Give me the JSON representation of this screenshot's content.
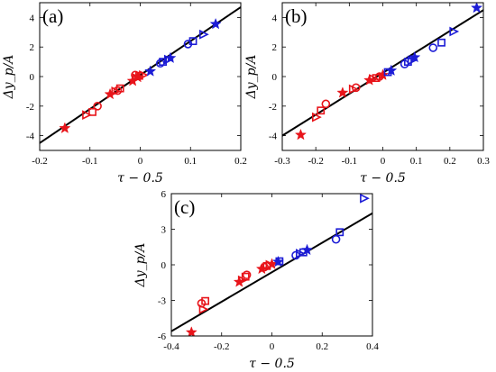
{
  "colors": {
    "red": "#e8141a",
    "blue": "#1c1cd6",
    "fit_line": "#000000"
  },
  "chart_data": [
    {
      "type": "scatter",
      "panel_label": "(a)",
      "xlabel": "τ − 0.5",
      "ylabel": "Δy_p/A",
      "xlim": [
        -0.2,
        0.2
      ],
      "ylim": [
        -5,
        5
      ],
      "xticks": [
        -0.2,
        -0.1,
        0,
        0.1,
        0.2
      ],
      "yticks": [
        -4,
        -2,
        0,
        2,
        4
      ],
      "xtick_labels": [
        "-0.2",
        "-0.1",
        "0",
        "0.1",
        "0.2"
      ],
      "ytick_labels": [
        "-4",
        "-2",
        "0",
        "2",
        "4"
      ],
      "grid": false,
      "fit_line": {
        "x": [
          -0.2,
          0.2
        ],
        "y": [
          -4.5,
          4.7
        ]
      },
      "points": [
        {
          "x": -0.15,
          "y": -3.5,
          "marker": "star",
          "color": "red"
        },
        {
          "x": -0.108,
          "y": -2.6,
          "marker": "triangle",
          "color": "red"
        },
        {
          "x": -0.095,
          "y": -2.4,
          "marker": "square",
          "color": "red"
        },
        {
          "x": -0.085,
          "y": -2.0,
          "marker": "circle",
          "color": "red"
        },
        {
          "x": -0.06,
          "y": -1.2,
          "marker": "star",
          "color": "red"
        },
        {
          "x": -0.05,
          "y": -1.0,
          "marker": "triangle",
          "color": "red"
        },
        {
          "x": -0.045,
          "y": -0.95,
          "marker": "circle",
          "color": "red"
        },
        {
          "x": -0.04,
          "y": -0.8,
          "marker": "square",
          "color": "red"
        },
        {
          "x": -0.015,
          "y": -0.3,
          "marker": "star",
          "color": "red"
        },
        {
          "x": -0.008,
          "y": -0.1,
          "marker": "triangle",
          "color": "red"
        },
        {
          "x": -0.005,
          "y": -0.05,
          "marker": "star",
          "color": "red"
        },
        {
          "x": -0.002,
          "y": 0.05,
          "marker": "square",
          "color": "red"
        },
        {
          "x": 0.005,
          "y": 0.1,
          "marker": "triangle",
          "color": "red"
        },
        {
          "x": -0.01,
          "y": 0.1,
          "marker": "circle",
          "color": "red"
        },
        {
          "x": 0.02,
          "y": 0.35,
          "marker": "star",
          "color": "blue"
        },
        {
          "x": 0.04,
          "y": 0.9,
          "marker": "circle",
          "color": "blue"
        },
        {
          "x": 0.045,
          "y": 1.0,
          "marker": "square",
          "color": "blue"
        },
        {
          "x": 0.055,
          "y": 1.15,
          "marker": "triangle",
          "color": "blue"
        },
        {
          "x": 0.06,
          "y": 1.25,
          "marker": "star",
          "color": "blue"
        },
        {
          "x": 0.095,
          "y": 2.2,
          "marker": "circle",
          "color": "blue"
        },
        {
          "x": 0.105,
          "y": 2.4,
          "marker": "square",
          "color": "blue"
        },
        {
          "x": 0.125,
          "y": 2.85,
          "marker": "triangle",
          "color": "blue"
        },
        {
          "x": 0.15,
          "y": 3.55,
          "marker": "star",
          "color": "blue"
        }
      ]
    },
    {
      "type": "scatter",
      "panel_label": "(b)",
      "xlabel": "τ − 0.5",
      "ylabel": "Δy_p/A",
      "xlim": [
        -0.3,
        0.3
      ],
      "ylim": [
        -5,
        5
      ],
      "xticks": [
        -0.3,
        -0.2,
        -0.1,
        0,
        0.1,
        0.2,
        0.3
      ],
      "yticks": [
        -4,
        -2,
        0,
        2,
        4
      ],
      "xtick_labels": [
        "-0.3",
        "-0.2",
        "-0.1",
        "0",
        "0.1",
        "0.2",
        "0.3"
      ],
      "ytick_labels": [
        "-4",
        "-2",
        "0",
        "2",
        "4"
      ],
      "grid": false,
      "fit_line": {
        "x": [
          -0.3,
          0.3
        ],
        "y": [
          -4.0,
          4.5
        ]
      },
      "points": [
        {
          "x": -0.245,
          "y": -3.95,
          "marker": "star",
          "color": "red"
        },
        {
          "x": -0.2,
          "y": -2.75,
          "marker": "triangle",
          "color": "red"
        },
        {
          "x": -0.185,
          "y": -2.3,
          "marker": "square",
          "color": "red"
        },
        {
          "x": -0.17,
          "y": -1.85,
          "marker": "circle",
          "color": "red"
        },
        {
          "x": -0.12,
          "y": -1.1,
          "marker": "star",
          "color": "red"
        },
        {
          "x": -0.09,
          "y": -0.85,
          "marker": "triangle",
          "color": "red"
        },
        {
          "x": -0.08,
          "y": -0.75,
          "marker": "circle",
          "color": "red"
        },
        {
          "x": -0.04,
          "y": -0.25,
          "marker": "star",
          "color": "red"
        },
        {
          "x": -0.03,
          "y": -0.15,
          "marker": "triangle",
          "color": "red"
        },
        {
          "x": -0.02,
          "y": -0.1,
          "marker": "square",
          "color": "red"
        },
        {
          "x": -0.01,
          "y": 0.0,
          "marker": "circle",
          "color": "red"
        },
        {
          "x": 0.0,
          "y": 0.1,
          "marker": "star",
          "color": "red"
        },
        {
          "x": 0.015,
          "y": 0.3,
          "marker": "square",
          "color": "blue"
        },
        {
          "x": 0.025,
          "y": 0.4,
          "marker": "star",
          "color": "blue"
        },
        {
          "x": 0.065,
          "y": 0.85,
          "marker": "circle",
          "color": "blue"
        },
        {
          "x": 0.075,
          "y": 1.0,
          "marker": "square",
          "color": "blue"
        },
        {
          "x": 0.085,
          "y": 1.1,
          "marker": "triangle",
          "color": "blue"
        },
        {
          "x": 0.095,
          "y": 1.3,
          "marker": "star",
          "color": "blue"
        },
        {
          "x": 0.15,
          "y": 1.95,
          "marker": "circle",
          "color": "blue"
        },
        {
          "x": 0.175,
          "y": 2.3,
          "marker": "square",
          "color": "blue"
        },
        {
          "x": 0.21,
          "y": 3.05,
          "marker": "triangle",
          "color": "blue"
        },
        {
          "x": 0.28,
          "y": 4.65,
          "marker": "star",
          "color": "blue"
        }
      ]
    },
    {
      "type": "scatter",
      "panel_label": "(c)",
      "xlabel": "τ − 0.5",
      "ylabel": "Δy_p/A",
      "xlim": [
        -0.4,
        0.4
      ],
      "ylim": [
        -6,
        6
      ],
      "xticks": [
        -0.4,
        -0.2,
        0,
        0.2,
        0.4
      ],
      "yticks": [
        -6,
        -3,
        0,
        3,
        6
      ],
      "xtick_labels": [
        "-0.4",
        "-0.2",
        "0",
        "0.2",
        "0.4"
      ],
      "ytick_labels": [
        "-6",
        "-3",
        "0",
        "3",
        "6"
      ],
      "grid": false,
      "fit_line": {
        "x": [
          -0.4,
          0.4
        ],
        "y": [
          -5.6,
          4.35
        ]
      },
      "points": [
        {
          "x": -0.32,
          "y": -5.7,
          "marker": "star",
          "color": "red"
        },
        {
          "x": -0.275,
          "y": -3.75,
          "marker": "triangle",
          "color": "red"
        },
        {
          "x": -0.28,
          "y": -3.25,
          "marker": "circle",
          "color": "red"
        },
        {
          "x": -0.265,
          "y": -3.05,
          "marker": "square",
          "color": "red"
        },
        {
          "x": -0.13,
          "y": -1.45,
          "marker": "star",
          "color": "red"
        },
        {
          "x": -0.12,
          "y": -1.3,
          "marker": "triangle",
          "color": "red"
        },
        {
          "x": -0.105,
          "y": -1.0,
          "marker": "square",
          "color": "red"
        },
        {
          "x": -0.1,
          "y": -0.85,
          "marker": "circle",
          "color": "red"
        },
        {
          "x": -0.04,
          "y": -0.35,
          "marker": "star",
          "color": "red"
        },
        {
          "x": -0.03,
          "y": -0.2,
          "marker": "circle",
          "color": "red"
        },
        {
          "x": -0.02,
          "y": -0.1,
          "marker": "square",
          "color": "red"
        },
        {
          "x": -0.01,
          "y": 0.0,
          "marker": "triangle",
          "color": "red"
        },
        {
          "x": 0.0,
          "y": 0.05,
          "marker": "star",
          "color": "red"
        },
        {
          "x": 0.025,
          "y": 0.25,
          "marker": "star",
          "color": "blue"
        },
        {
          "x": 0.03,
          "y": 0.3,
          "marker": "square",
          "color": "blue"
        },
        {
          "x": 0.095,
          "y": 0.8,
          "marker": "circle",
          "color": "blue"
        },
        {
          "x": 0.11,
          "y": 0.95,
          "marker": "triangle",
          "color": "blue"
        },
        {
          "x": 0.125,
          "y": 1.05,
          "marker": "square",
          "color": "blue"
        },
        {
          "x": 0.14,
          "y": 1.25,
          "marker": "star",
          "color": "blue"
        },
        {
          "x": 0.255,
          "y": 2.15,
          "marker": "circle",
          "color": "blue"
        },
        {
          "x": 0.27,
          "y": 2.75,
          "marker": "square",
          "color": "blue"
        },
        {
          "x": 0.365,
          "y": 5.6,
          "marker": "triangle",
          "color": "blue"
        }
      ]
    }
  ]
}
